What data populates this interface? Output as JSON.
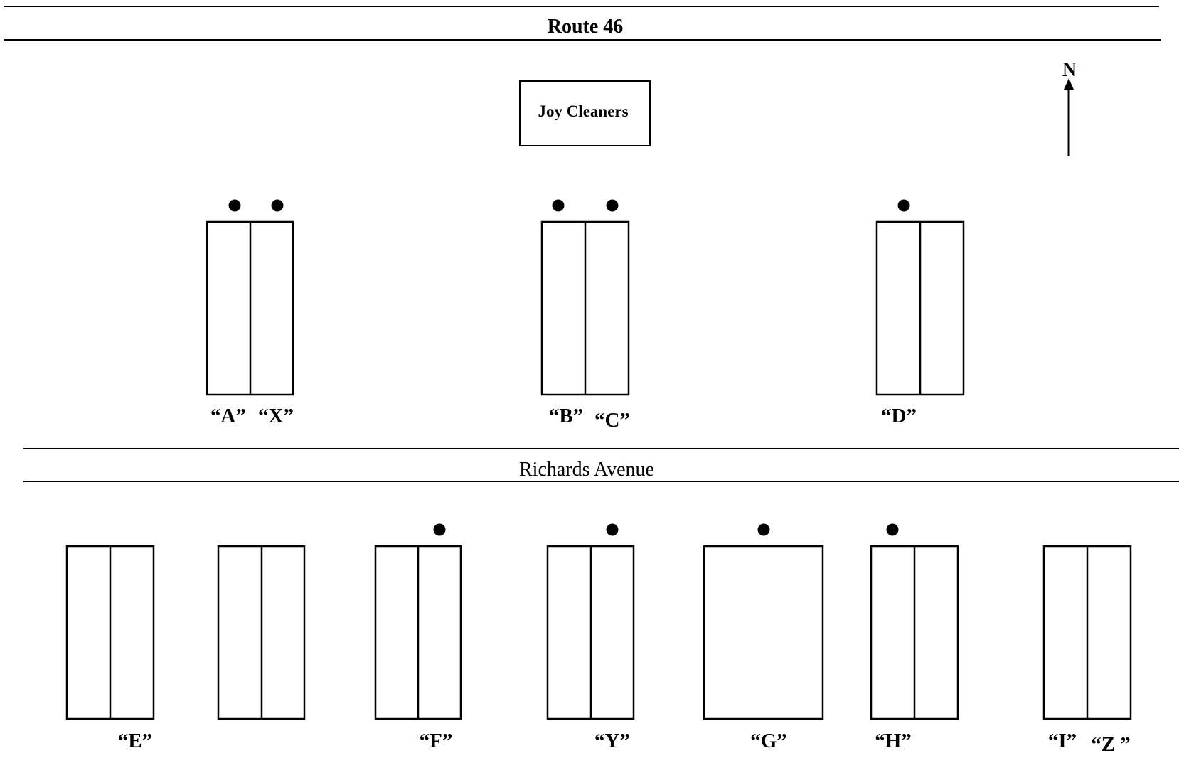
{
  "roads": {
    "top": "Route 46",
    "middle": "Richards Avenue"
  },
  "building": {
    "name": "Joy Cleaners"
  },
  "compass": {
    "label": "N"
  },
  "north_row": {
    "labels": [
      "“A”",
      "“X”",
      "“B”",
      "“C”",
      "“D”"
    ]
  },
  "south_row": {
    "labels": [
      "“E”",
      "“F”",
      "“Y”",
      "“G”",
      "“H”",
      "“I”",
      "“Z ”"
    ]
  },
  "colors": {
    "ink": "#000000",
    "background": "#ffffff"
  }
}
